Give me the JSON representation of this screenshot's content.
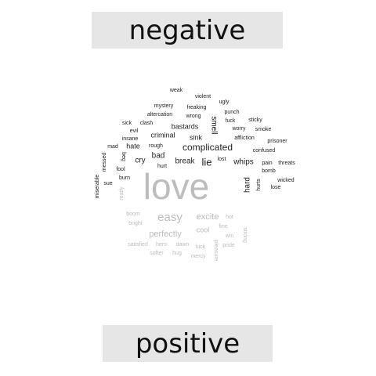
{
  "panels": {
    "top_label": "negative",
    "bottom_label": "positive"
  },
  "colors": {
    "negative_word": "#222222",
    "positive_word": "#bdbdbd",
    "label_background": "#e6e6e6"
  },
  "chart_data": {
    "type": "wordcloud",
    "title": "",
    "groups": [
      "negative",
      "positive"
    ],
    "words": [
      {
        "word": "love",
        "group": "positive",
        "weight": 10
      },
      {
        "word": "easy",
        "group": "positive",
        "weight": 4
      },
      {
        "word": "excite",
        "group": "positive",
        "weight": 3
      },
      {
        "word": "perfectly",
        "group": "positive",
        "weight": 3
      },
      {
        "word": "cool",
        "group": "positive",
        "weight": 2
      },
      {
        "word": "boom",
        "group": "positive",
        "weight": 1
      },
      {
        "word": "bright",
        "group": "positive",
        "weight": 1
      },
      {
        "word": "hot",
        "group": "positive",
        "weight": 1
      },
      {
        "word": "fine",
        "group": "positive",
        "weight": 1
      },
      {
        "word": "win",
        "group": "positive",
        "weight": 1
      },
      {
        "word": "strong",
        "group": "positive",
        "weight": 1
      },
      {
        "word": "satisfied",
        "group": "positive",
        "weight": 1
      },
      {
        "word": "hero",
        "group": "positive",
        "weight": 1
      },
      {
        "word": "dawn",
        "group": "positive",
        "weight": 1
      },
      {
        "word": "luck",
        "group": "positive",
        "weight": 1
      },
      {
        "word": "pride",
        "group": "positive",
        "weight": 1
      },
      {
        "word": "softer",
        "group": "positive",
        "weight": 1
      },
      {
        "word": "hug",
        "group": "positive",
        "weight": 1
      },
      {
        "word": "mercy",
        "group": "positive",
        "weight": 1
      },
      {
        "word": "pleasure",
        "group": "positive",
        "weight": 1
      },
      {
        "word": "ready",
        "group": "positive",
        "weight": 1
      },
      {
        "word": "complicated",
        "group": "negative",
        "weight": 3
      },
      {
        "word": "lie",
        "group": "negative",
        "weight": 3
      },
      {
        "word": "bad",
        "group": "negative",
        "weight": 2
      },
      {
        "word": "break",
        "group": "negative",
        "weight": 2
      },
      {
        "word": "whips",
        "group": "negative",
        "weight": 2
      },
      {
        "word": "cry",
        "group": "negative",
        "weight": 2
      },
      {
        "word": "hate",
        "group": "negative",
        "weight": 2
      },
      {
        "word": "hard",
        "group": "negative",
        "weight": 2
      },
      {
        "word": "smell",
        "group": "negative",
        "weight": 2
      },
      {
        "word": "sink",
        "group": "negative",
        "weight": 2
      },
      {
        "word": "bastards",
        "group": "negative",
        "weight": 2
      },
      {
        "word": "criminal",
        "group": "negative",
        "weight": 2
      },
      {
        "word": "weak",
        "group": "negative",
        "weight": 1
      },
      {
        "word": "violent",
        "group": "negative",
        "weight": 1
      },
      {
        "word": "ugly",
        "group": "negative",
        "weight": 1
      },
      {
        "word": "mystery",
        "group": "negative",
        "weight": 1
      },
      {
        "word": "freaking",
        "group": "negative",
        "weight": 1
      },
      {
        "word": "punch",
        "group": "negative",
        "weight": 1
      },
      {
        "word": "altercation",
        "group": "negative",
        "weight": 1
      },
      {
        "word": "wrong",
        "group": "negative",
        "weight": 1
      },
      {
        "word": "fuck",
        "group": "negative",
        "weight": 1
      },
      {
        "word": "sticky",
        "group": "negative",
        "weight": 1
      },
      {
        "word": "sick",
        "group": "negative",
        "weight": 1
      },
      {
        "word": "clash",
        "group": "negative",
        "weight": 1
      },
      {
        "word": "worry",
        "group": "negative",
        "weight": 1
      },
      {
        "word": "smoke",
        "group": "negative",
        "weight": 1
      },
      {
        "word": "evil",
        "group": "negative",
        "weight": 1
      },
      {
        "word": "insane",
        "group": "negative",
        "weight": 1
      },
      {
        "word": "affliction",
        "group": "negative",
        "weight": 1
      },
      {
        "word": "prisoner",
        "group": "negative",
        "weight": 1
      },
      {
        "word": "mad",
        "group": "negative",
        "weight": 1
      },
      {
        "word": "rough",
        "group": "negative",
        "weight": 1
      },
      {
        "word": "confused",
        "group": "negative",
        "weight": 1
      },
      {
        "word": "beg",
        "group": "negative",
        "weight": 1
      },
      {
        "word": "lost",
        "group": "negative",
        "weight": 1
      },
      {
        "word": "pain",
        "group": "negative",
        "weight": 1
      },
      {
        "word": "threats",
        "group": "negative",
        "weight": 1
      },
      {
        "word": "messed",
        "group": "negative",
        "weight": 1
      },
      {
        "word": "fool",
        "group": "negative",
        "weight": 1
      },
      {
        "word": "hurt",
        "group": "negative",
        "weight": 1
      },
      {
        "word": "bomb",
        "group": "negative",
        "weight": 1
      },
      {
        "word": "burn",
        "group": "negative",
        "weight": 1
      },
      {
        "word": "hurts",
        "group": "negative",
        "weight": 1
      },
      {
        "word": "wicked",
        "group": "negative",
        "weight": 1
      },
      {
        "word": "sue",
        "group": "negative",
        "weight": 1
      },
      {
        "word": "lose",
        "group": "negative",
        "weight": 1
      },
      {
        "word": "miserable",
        "group": "negative",
        "weight": 1
      }
    ]
  }
}
